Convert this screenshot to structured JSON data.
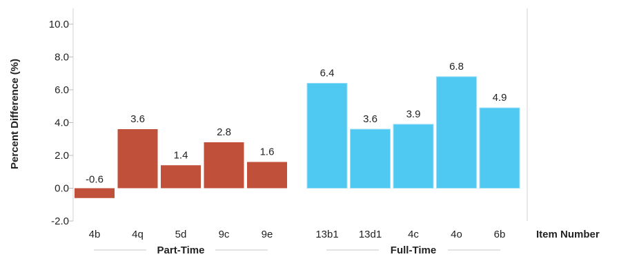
{
  "chart_data": {
    "type": "bar",
    "ylabel": "Percent Difference (%)",
    "xlabel": "Item Number",
    "ylim": [
      -2.0,
      10.0
    ],
    "yticks": [
      "10.0",
      "8.0",
      "6.0",
      "4.0",
      "2.0",
      "0.0",
      "-2.0"
    ],
    "ytick_values": [
      10,
      8,
      6,
      4,
      2,
      0,
      -2
    ],
    "grid": false,
    "groups": [
      {
        "name": "Part-Time",
        "color": "#C0503A",
        "categories": [
          "4b",
          "4q",
          "5d",
          "9c",
          "9e"
        ],
        "values": [
          -0.6,
          3.6,
          1.4,
          2.8,
          1.6
        ],
        "labels": [
          "-0.6",
          "3.6",
          "1.4",
          "2.8",
          "1.6"
        ]
      },
      {
        "name": "Full-Time",
        "color": "#4FC8F2",
        "categories": [
          "13b1",
          "13d1",
          "4c",
          "4o",
          "6b"
        ],
        "values": [
          6.4,
          3.6,
          3.9,
          6.8,
          4.9
        ],
        "labels": [
          "6.4",
          "3.6",
          "3.9",
          "6.8",
          "4.9"
        ]
      }
    ]
  }
}
